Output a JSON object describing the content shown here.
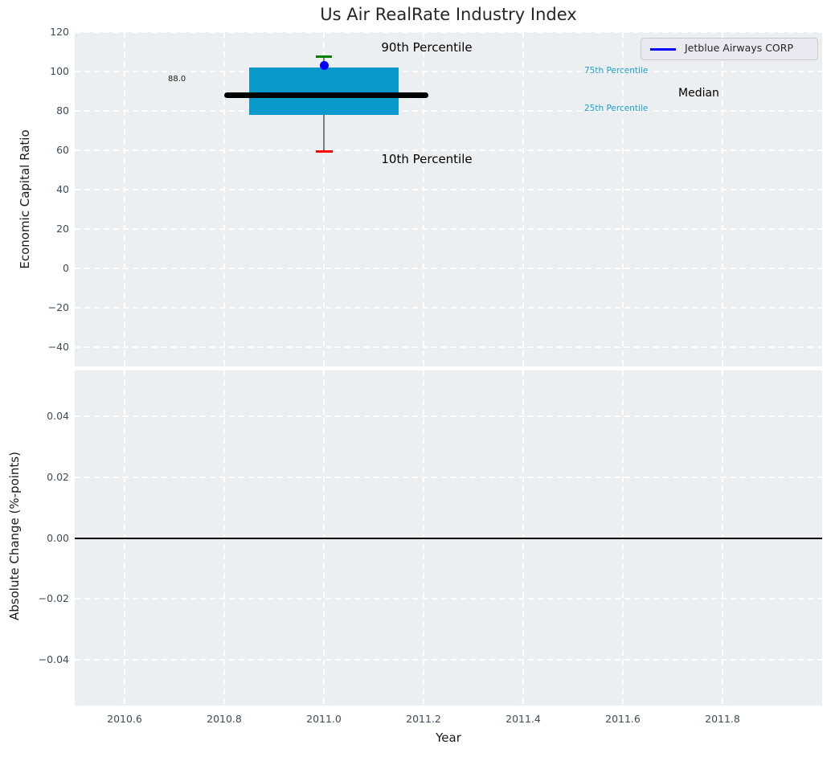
{
  "title": "Us Air RealRate Industry Index",
  "legend": {
    "entry_label": "Jetblue Airways CORP",
    "entry_color": "#0000ff"
  },
  "annotations": {
    "p90_label": "90th Percentile",
    "p10_label": "10th Percentile",
    "p75_label": "75th Percentile",
    "p25_label": "25th Percentile",
    "median_label": "Median",
    "median_value_label": "88.0"
  },
  "axes": {
    "top": {
      "ylabel": "Economic Capital Ratio",
      "yticks": [
        "120",
        "100",
        "80",
        "60",
        "40",
        "20",
        "0",
        "−20",
        "−40"
      ]
    },
    "bottom": {
      "ylabel": "Absolute Change (%-points)",
      "yticks": [
        "0.04",
        "0.02",
        "0.00",
        "−0.02",
        "−0.04"
      ]
    },
    "x": {
      "label": "Year",
      "ticks": [
        "2010.6",
        "2010.8",
        "2011.0",
        "2011.2",
        "2011.4",
        "2011.6",
        "2011.8"
      ]
    }
  },
  "chart_data": {
    "type": "boxplot",
    "title": "Us Air RealRate Industry Index",
    "xlabel": "Year",
    "xlim": [
      2010.5,
      2012.0
    ],
    "xticks": [
      2010.6,
      2010.8,
      2011.0,
      2011.2,
      2011.4,
      2011.6,
      2011.8
    ],
    "grid": "white-dashed on light-gray background",
    "legend_position": "upper right",
    "panels": [
      {
        "name": "industry-index-boxplot",
        "ylabel": "Economic Capital Ratio",
        "ylim": [
          -50,
          120
        ],
        "yticks": [
          120,
          100,
          80,
          60,
          40,
          20,
          0,
          -20,
          -40
        ],
        "boxes": [
          {
            "x": 2011.0,
            "p10": 59.5,
            "p25": 78,
            "median": 88.0,
            "p75": 102,
            "p90": 107.5,
            "box_extent_x": [
              2010.85,
              2011.15
            ],
            "median_line_extent_x": [
              2010.8,
              2011.21
            ],
            "box_color": "#0999cb",
            "median_color": "#000000",
            "whisker_color": "#7a7a7a",
            "p90_cap_color": "#008000",
            "p10_cap_color": "#ff0000"
          }
        ],
        "series": [
          {
            "name": "Jetblue Airways CORP",
            "color": "#0000ff",
            "marker": "circle",
            "points": [
              {
                "x": 2011.0,
                "y": 103
              }
            ]
          }
        ]
      },
      {
        "name": "absolute-change",
        "ylabel": "Absolute Change (%-points)",
        "ylim": [
          -0.055,
          0.055
        ],
        "yticks": [
          0.04,
          0.02,
          0.0,
          -0.02,
          -0.04
        ],
        "zero_line": 0.0,
        "series": []
      }
    ]
  }
}
